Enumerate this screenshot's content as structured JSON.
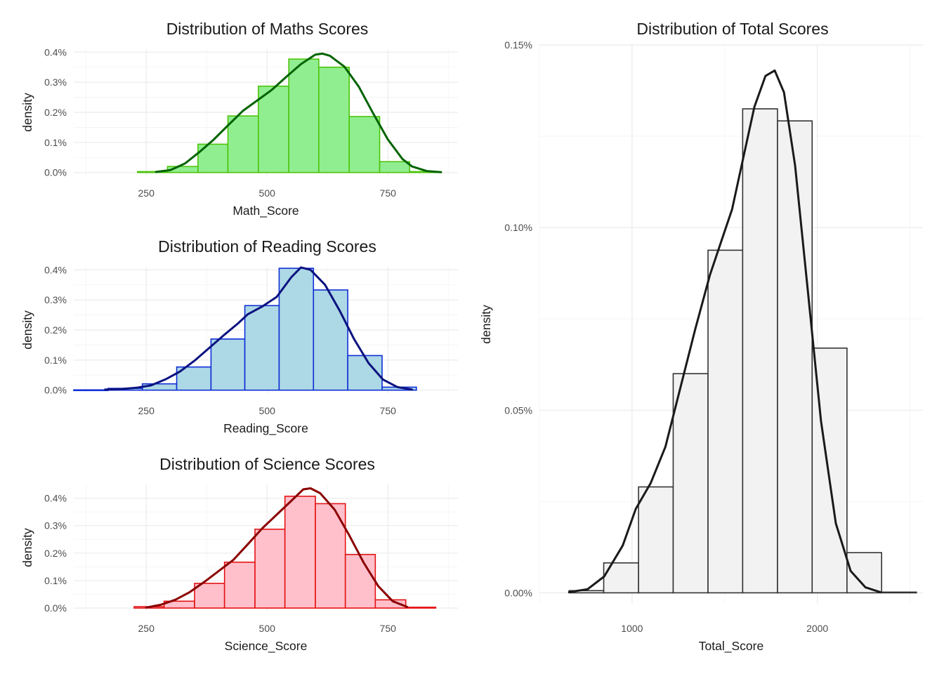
{
  "chart_data": [
    {
      "id": "math",
      "type": "histogram",
      "title": "Distribution of Maths Scores",
      "xlabel": "Math_Score",
      "ylabel": "density",
      "xlim": [
        100,
        895
      ],
      "ylim": [
        -0.0001,
        0.0041
      ],
      "x_ticks": [
        250,
        500,
        750
      ],
      "x_tick_labels": [
        "250",
        "500",
        "750"
      ],
      "y_ticks": [
        0,
        0.001,
        0.002,
        0.003,
        0.004
      ],
      "y_tick_labels": [
        "0.0%",
        "0.1%",
        "0.2%",
        "0.3%",
        "0.4%"
      ],
      "colors": {
        "fill": "#90ee90",
        "edge": "#4cc40a",
        "line": "#006400"
      },
      "bins": [
        {
          "x0": 232,
          "x1": 294,
          "density": 3e-05
        },
        {
          "x0": 294,
          "x1": 357,
          "density": 0.0002
        },
        {
          "x0": 357,
          "x1": 419,
          "density": 0.00094
        },
        {
          "x0": 419,
          "x1": 482,
          "density": 0.00188
        },
        {
          "x0": 482,
          "x1": 545,
          "density": 0.00287
        },
        {
          "x0": 545,
          "x1": 607,
          "density": 0.00377
        },
        {
          "x0": 607,
          "x1": 670,
          "density": 0.0035
        },
        {
          "x0": 670,
          "x1": 733,
          "density": 0.00186
        },
        {
          "x0": 733,
          "x1": 795,
          "density": 0.00036
        },
        {
          "x0": 795,
          "x1": 858,
          "density": 3e-05
        }
      ],
      "density_curve": [
        [
          270,
          2e-05
        ],
        [
          300,
          8e-05
        ],
        [
          330,
          0.0003
        ],
        [
          360,
          0.00068
        ],
        [
          390,
          0.0011
        ],
        [
          420,
          0.00158
        ],
        [
          450,
          0.00205
        ],
        [
          480,
          0.0024
        ],
        [
          510,
          0.00275
        ],
        [
          540,
          0.00318
        ],
        [
          570,
          0.0036
        ],
        [
          600,
          0.00392
        ],
        [
          615,
          0.00395
        ],
        [
          630,
          0.00388
        ],
        [
          660,
          0.00352
        ],
        [
          690,
          0.00285
        ],
        [
          720,
          0.00195
        ],
        [
          750,
          0.0011
        ],
        [
          780,
          0.00045
        ],
        [
          800,
          0.0002
        ],
        [
          830,
          5e-05
        ],
        [
          860,
          1e-05
        ]
      ]
    },
    {
      "id": "reading",
      "type": "histogram",
      "title": "Distribution of Reading Scores",
      "xlabel": "Reading_Score",
      "ylabel": "density",
      "xlim": [
        100,
        895
      ],
      "ylim": [
        -0.0001,
        0.0041
      ],
      "x_ticks": [
        250,
        500,
        750
      ],
      "x_tick_labels": [
        "250",
        "500",
        "750"
      ],
      "y_ticks": [
        0,
        0.001,
        0.002,
        0.003,
        0.004
      ],
      "y_tick_labels": [
        "0.0%",
        "0.1%",
        "0.2%",
        "0.3%",
        "0.4%"
      ],
      "colors": {
        "fill": "#add8e6",
        "edge": "#0f2fd6",
        "line": "#0b127f"
      },
      "bins": [
        {
          "x0": 100,
          "x1": 171,
          "density": 1e-05
        },
        {
          "x0": 171,
          "x1": 242,
          "density": 6e-05
        },
        {
          "x0": 242,
          "x1": 313,
          "density": 0.00021
        },
        {
          "x0": 313,
          "x1": 384,
          "density": 0.00077
        },
        {
          "x0": 384,
          "x1": 454,
          "density": 0.0017
        },
        {
          "x0": 454,
          "x1": 525,
          "density": 0.00281
        },
        {
          "x0": 525,
          "x1": 596,
          "density": 0.00405
        },
        {
          "x0": 596,
          "x1": 667,
          "density": 0.00333
        },
        {
          "x0": 667,
          "x1": 738,
          "density": 0.00115
        },
        {
          "x0": 738,
          "x1": 809,
          "density": 0.0001
        }
      ],
      "density_curve": [
        [
          165,
          2e-05
        ],
        [
          200,
          4e-05
        ],
        [
          230,
          8e-05
        ],
        [
          260,
          0.00016
        ],
        [
          290,
          0.00036
        ],
        [
          320,
          0.00062
        ],
        [
          350,
          0.00098
        ],
        [
          380,
          0.0014
        ],
        [
          410,
          0.00182
        ],
        [
          440,
          0.00222
        ],
        [
          460,
          0.00252
        ],
        [
          490,
          0.00278
        ],
        [
          520,
          0.0031
        ],
        [
          550,
          0.00375
        ],
        [
          570,
          0.00408
        ],
        [
          590,
          0.004
        ],
        [
          620,
          0.0035
        ],
        [
          650,
          0.00265
        ],
        [
          680,
          0.0017
        ],
        [
          710,
          0.0009
        ],
        [
          740,
          0.00035
        ],
        [
          770,
          0.0001
        ],
        [
          800,
          2e-05
        ]
      ]
    },
    {
      "id": "science",
      "type": "histogram",
      "title": "Distribution of Science Scores",
      "xlabel": "Science_Score",
      "ylabel": "density",
      "xlim": [
        100,
        895
      ],
      "ylim": [
        -0.0001,
        0.0045
      ],
      "x_ticks": [
        250,
        500,
        750
      ],
      "x_tick_labels": [
        "250",
        "500",
        "750"
      ],
      "y_ticks": [
        0,
        0.001,
        0.002,
        0.003,
        0.004
      ],
      "y_tick_labels": [
        "0.0%",
        "0.1%",
        "0.2%",
        "0.3%",
        "0.4%"
      ],
      "colors": {
        "fill": "#ffc0cb",
        "edge": "#e31313",
        "line": "#8b0000"
      },
      "bins": [
        {
          "x0": 225,
          "x1": 287,
          "density": 5e-05
        },
        {
          "x0": 287,
          "x1": 350,
          "density": 0.00025
        },
        {
          "x0": 350,
          "x1": 412,
          "density": 0.0009
        },
        {
          "x0": 412,
          "x1": 475,
          "density": 0.00167
        },
        {
          "x0": 475,
          "x1": 537,
          "density": 0.00287
        },
        {
          "x0": 537,
          "x1": 600,
          "density": 0.00407
        },
        {
          "x0": 600,
          "x1": 662,
          "density": 0.0038
        },
        {
          "x0": 662,
          "x1": 724,
          "density": 0.00195
        },
        {
          "x0": 724,
          "x1": 787,
          "density": 0.0003
        },
        {
          "x0": 787,
          "x1": 849,
          "density": 3e-05
        }
      ],
      "density_curve": [
        [
          250,
          2e-05
        ],
        [
          280,
          0.00012
        ],
        [
          310,
          0.0003
        ],
        [
          340,
          0.00058
        ],
        [
          370,
          0.00095
        ],
        [
          400,
          0.00135
        ],
        [
          430,
          0.00175
        ],
        [
          460,
          0.00232
        ],
        [
          490,
          0.0029
        ],
        [
          520,
          0.0034
        ],
        [
          550,
          0.0039
        ],
        [
          575,
          0.00432
        ],
        [
          590,
          0.00436
        ],
        [
          610,
          0.00418
        ],
        [
          640,
          0.00358
        ],
        [
          670,
          0.00265
        ],
        [
          700,
          0.00165
        ],
        [
          730,
          0.0008
        ],
        [
          760,
          0.00025
        ],
        [
          790,
          4e-05
        ]
      ]
    },
    {
      "id": "total",
      "type": "histogram",
      "title": "Distribution of Total Scores",
      "xlabel": "Total_Score",
      "ylabel": "density",
      "xlim": [
        500,
        2570
      ],
      "ylim": [
        -3e-05,
        0.0015
      ],
      "x_ticks": [
        1000,
        2000
      ],
      "x_tick_labels": [
        "1000",
        "2000"
      ],
      "y_ticks": [
        0,
        0.0005,
        0.001,
        0.0015
      ],
      "y_tick_labels": [
        "0.00%",
        "0.05%",
        "0.10%",
        "0.15%"
      ],
      "colors": {
        "fill": "#f2f2f2",
        "edge": "#333333",
        "line": "#1a1a1a"
      },
      "bins": [
        {
          "x0": 660,
          "x1": 847,
          "density": 6e-06
        },
        {
          "x0": 847,
          "x1": 1035,
          "density": 8.2e-05
        },
        {
          "x0": 1035,
          "x1": 1222,
          "density": 0.00029
        },
        {
          "x0": 1222,
          "x1": 1410,
          "density": 0.0006
        },
        {
          "x0": 1410,
          "x1": 1597,
          "density": 0.000938
        },
        {
          "x0": 1597,
          "x1": 1785,
          "density": 0.001325
        },
        {
          "x0": 1785,
          "x1": 1972,
          "density": 0.001292
        },
        {
          "x0": 1972,
          "x1": 2160,
          "density": 0.00067
        },
        {
          "x0": 2160,
          "x1": 2347,
          "density": 0.00011
        },
        {
          "x0": 2347,
          "x1": 2535,
          "density": 2e-06
        }
      ],
      "density_curve": [
        [
          660,
          2e-06
        ],
        [
          760,
          1e-05
        ],
        [
          850,
          4.5e-05
        ],
        [
          950,
          0.00013
        ],
        [
          1020,
          0.00023
        ],
        [
          1100,
          0.0003
        ],
        [
          1180,
          0.0004
        ],
        [
          1260,
          0.00056
        ],
        [
          1340,
          0.00072
        ],
        [
          1420,
          0.00087
        ],
        [
          1480,
          0.00096
        ],
        [
          1540,
          0.00105
        ],
        [
          1600,
          0.00119
        ],
        [
          1660,
          0.00133
        ],
        [
          1720,
          0.001415
        ],
        [
          1770,
          0.00143
        ],
        [
          1820,
          0.00137
        ],
        [
          1880,
          0.00117
        ],
        [
          1950,
          0.00082
        ],
        [
          2020,
          0.00047
        ],
        [
          2100,
          0.00019
        ],
        [
          2180,
          6e-05
        ],
        [
          2260,
          1.5e-05
        ],
        [
          2340,
          2e-06
        ]
      ]
    }
  ]
}
